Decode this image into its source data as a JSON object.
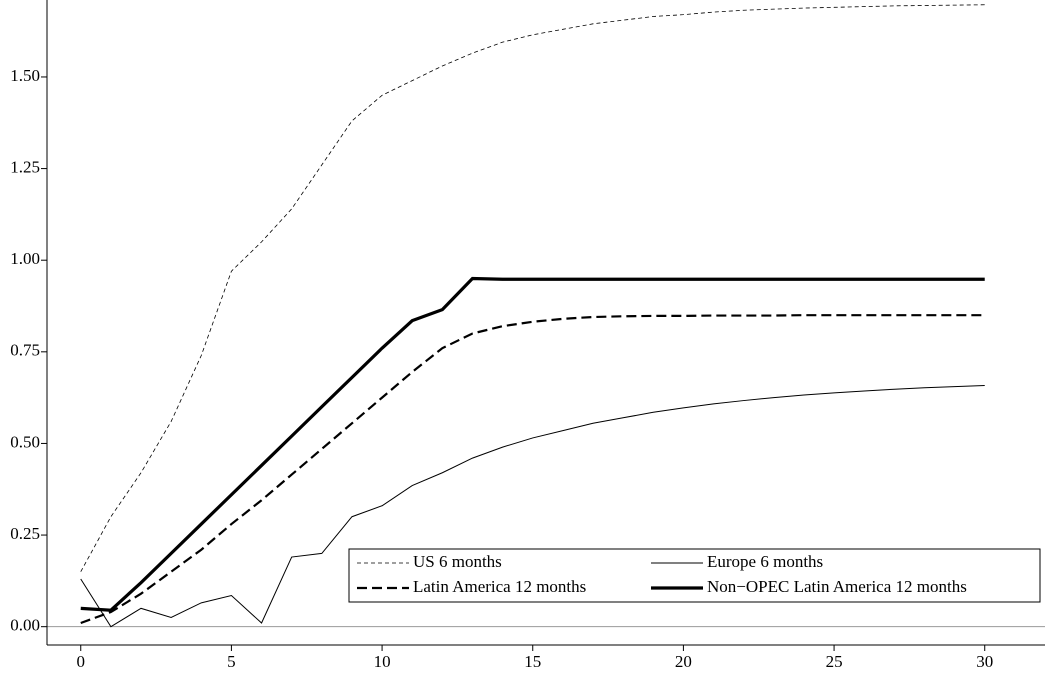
{
  "chart_data": {
    "type": "line",
    "x": [
      0,
      1,
      2,
      3,
      4,
      5,
      6,
      7,
      8,
      9,
      10,
      11,
      12,
      13,
      14,
      15,
      16,
      17,
      18,
      19,
      20,
      21,
      22,
      23,
      24,
      25,
      26,
      27,
      28,
      29,
      30
    ],
    "series": [
      {
        "name": "US 6 months",
        "color": "#000000",
        "style": "thin-dashed",
        "values": [
          0.15,
          0.3,
          0.42,
          0.56,
          0.74,
          0.97,
          1.05,
          1.14,
          1.26,
          1.38,
          1.45,
          1.49,
          1.53,
          1.565,
          1.595,
          1.615,
          1.63,
          1.645,
          1.655,
          1.665,
          1.67,
          1.677,
          1.682,
          1.685,
          1.688,
          1.69,
          1.692,
          1.694,
          1.695,
          1.696,
          1.697
        ]
      },
      {
        "name": "Europe 6 months",
        "color": "#000000",
        "style": "thin",
        "values": [
          0.13,
          0.0,
          0.05,
          0.025,
          0.065,
          0.085,
          0.01,
          0.19,
          0.2,
          0.3,
          0.33,
          0.385,
          0.42,
          0.46,
          0.49,
          0.515,
          0.535,
          0.555,
          0.57,
          0.585,
          0.597,
          0.608,
          0.617,
          0.625,
          0.632,
          0.638,
          0.643,
          0.648,
          0.652,
          0.655,
          0.658
        ]
      },
      {
        "name": "Latin America 12 months",
        "color": "#000000",
        "style": "dashed",
        "values": [
          0.01,
          0.04,
          0.09,
          0.15,
          0.21,
          0.28,
          0.345,
          0.415,
          0.485,
          0.555,
          0.625,
          0.695,
          0.76,
          0.8,
          0.82,
          0.832,
          0.84,
          0.845,
          0.847,
          0.848,
          0.848,
          0.849,
          0.849,
          0.849,
          0.85,
          0.85,
          0.85,
          0.85,
          0.85,
          0.85,
          0.85
        ]
      },
      {
        "name": "Non−OPEC Latin America 12 months",
        "color": "#000000",
        "style": "thick",
        "values": [
          0.05,
          0.045,
          0.12,
          0.2,
          0.28,
          0.36,
          0.44,
          0.52,
          0.6,
          0.68,
          0.76,
          0.835,
          0.865,
          0.95,
          0.948,
          0.948,
          0.948,
          0.948,
          0.948,
          0.948,
          0.948,
          0.948,
          0.948,
          0.948,
          0.948,
          0.948,
          0.948,
          0.948,
          0.948,
          0.948,
          0.948
        ]
      }
    ],
    "xlim": [
      -1.12,
      32
    ],
    "ylim": [
      -0.05,
      1.71
    ],
    "xticks": [
      0,
      5,
      10,
      15,
      20,
      25,
      30
    ],
    "yticks": [
      {
        "value": 0,
        "label": "0.00"
      },
      0.25,
      {
        "value": 0.5,
        "label": "0.50"
      },
      0.75,
      {
        "value": 1,
        "label": "1.00"
      },
      1.25,
      {
        "value": 1.5,
        "label": "1.50"
      }
    ],
    "zero_line": true,
    "legend": "lower right"
  }
}
